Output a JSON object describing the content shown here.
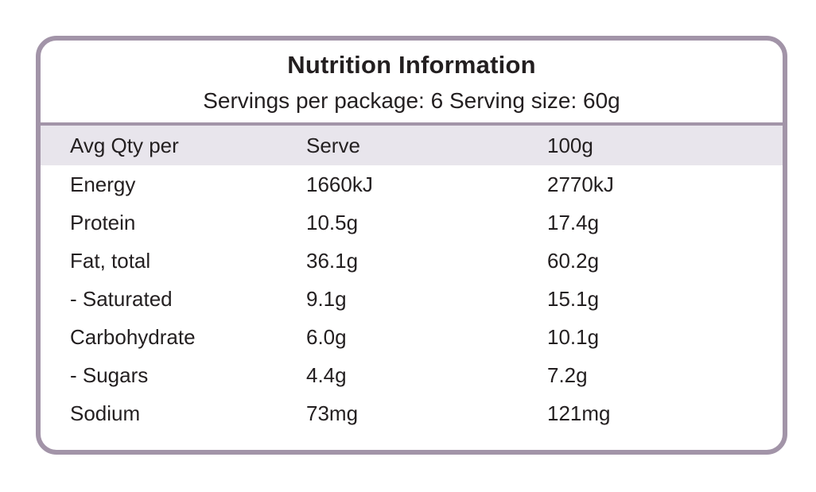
{
  "panel": {
    "title": "Nutrition Information",
    "subtitle": "Servings per package: 6 Serving size: 60g"
  },
  "table": {
    "headers": {
      "col1": "Avg Qty per",
      "col2": "Serve",
      "col3": "100g"
    },
    "rows": [
      {
        "label": "Energy",
        "serve": "1660kJ",
        "per100g": "2770kJ"
      },
      {
        "label": "Protein",
        "serve": "10.5g",
        "per100g": "17.4g"
      },
      {
        "label": "Fat, total",
        "serve": "36.1g",
        "per100g": "60.2g"
      },
      {
        "label": "- Saturated",
        "serve": "9.1g",
        "per100g": "15.1g"
      },
      {
        "label": "Carbohydrate",
        "serve": "6.0g",
        "per100g": "10.1g"
      },
      {
        "label": "- Sugars",
        "serve": "4.4g",
        "per100g": "7.2g"
      },
      {
        "label": "Sodium",
        "serve": "73mg",
        "per100g": "121mg"
      }
    ]
  },
  "colors": {
    "border": "#a294a8",
    "header_bg": "#e8e5ec",
    "text": "#231f20"
  }
}
